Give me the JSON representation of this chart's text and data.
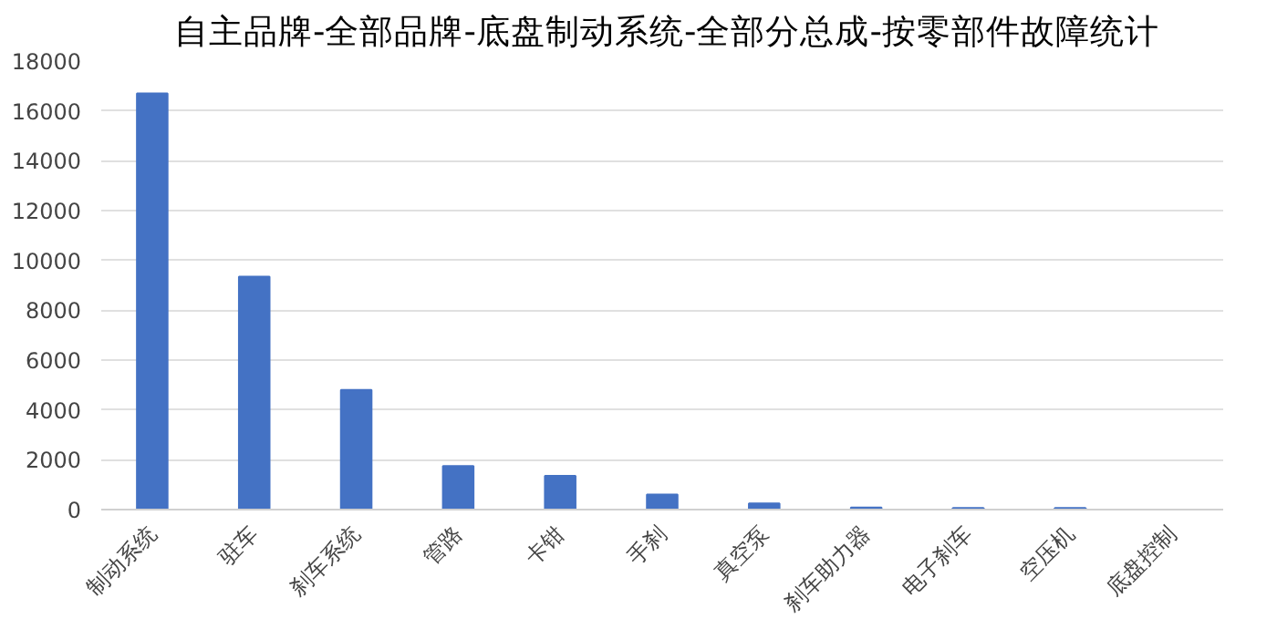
{
  "chart_data": {
    "type": "bar",
    "title": "自主品牌-全部品牌-底盘制动系统-全部分总成-按零部件故障统计",
    "categories": [
      "制动系统",
      "驻车",
      "刹车系统",
      "管路",
      "卡钳",
      "手刹",
      "真空泵",
      "刹车助力器",
      "电子刹车",
      "空压机",
      "底盘控制"
    ],
    "values": [
      16700,
      9350,
      4800,
      1750,
      1350,
      600,
      250,
      80,
      60,
      60,
      null
    ],
    "color": "#4472c4",
    "ylim": [
      0,
      18000
    ],
    "yticks": [
      0,
      2000,
      4000,
      6000,
      8000,
      10000,
      12000,
      14000,
      16000,
      18000
    ],
    "grid": "y"
  }
}
